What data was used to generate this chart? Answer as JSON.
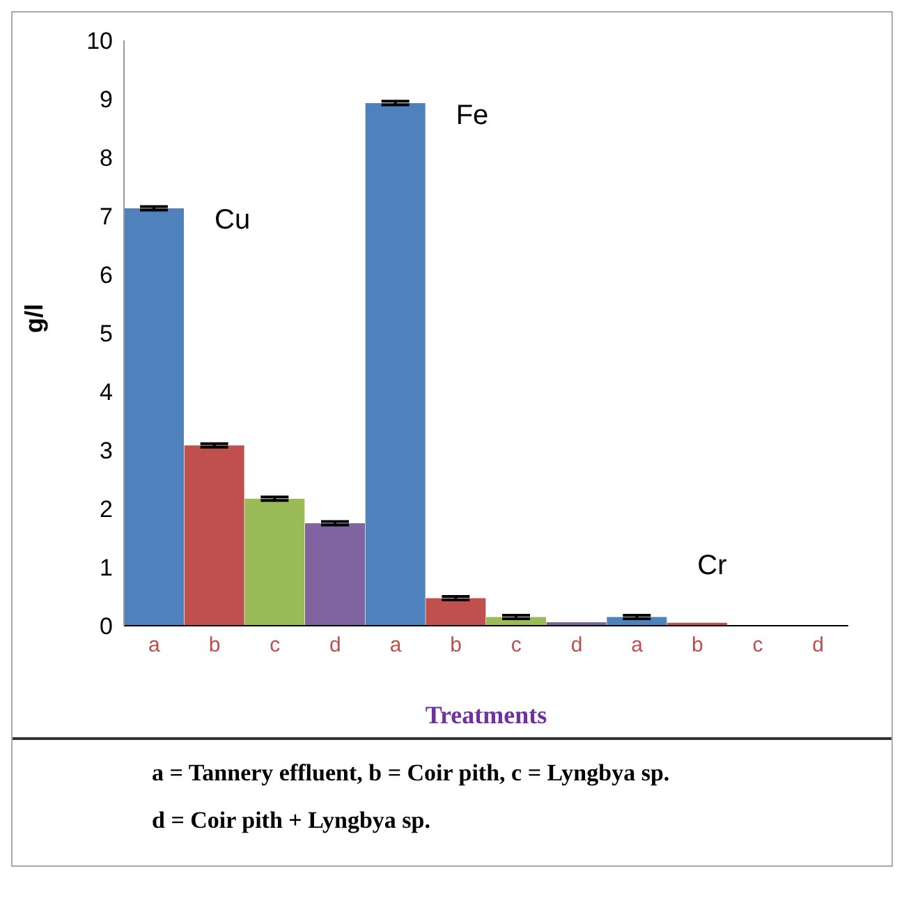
{
  "chart_data": {
    "type": "bar",
    "xlabel": "Treatments",
    "ylabel": "g/l",
    "categories": [
      "a",
      "b",
      "c",
      "d",
      "a",
      "b",
      "c",
      "d",
      "a",
      "b",
      "c",
      "d"
    ],
    "values": [
      7.13,
      3.08,
      2.17,
      1.75,
      8.93,
      0.47,
      0.15,
      0.06,
      0.15,
      0.05,
      null,
      null
    ],
    "errors": [
      0.03,
      0.03,
      0.03,
      0.03,
      0.03,
      0.03,
      0.03,
      null,
      0.03,
      null,
      null,
      null
    ],
    "colors": [
      "#4f81bd",
      "#c0504d",
      "#9bbb59",
      "#8064a2",
      "#4f81bd",
      "#c0504d",
      "#9bbb59",
      "#8064a2",
      "#4f81bd",
      "#c0504d",
      "#9bbb59",
      "#8064a2"
    ],
    "ylim": [
      0,
      10
    ],
    "yticks": [
      0,
      1,
      2,
      3,
      4,
      5,
      6,
      7,
      8,
      9,
      10
    ],
    "grid": false,
    "annotations": [
      "Cu",
      "Fe",
      "Cr",
      "a = Tannery effluent, b = Coir pith, c = Lyngbya sp.",
      "d = Coir pith + Lyngbya sp."
    ]
  }
}
